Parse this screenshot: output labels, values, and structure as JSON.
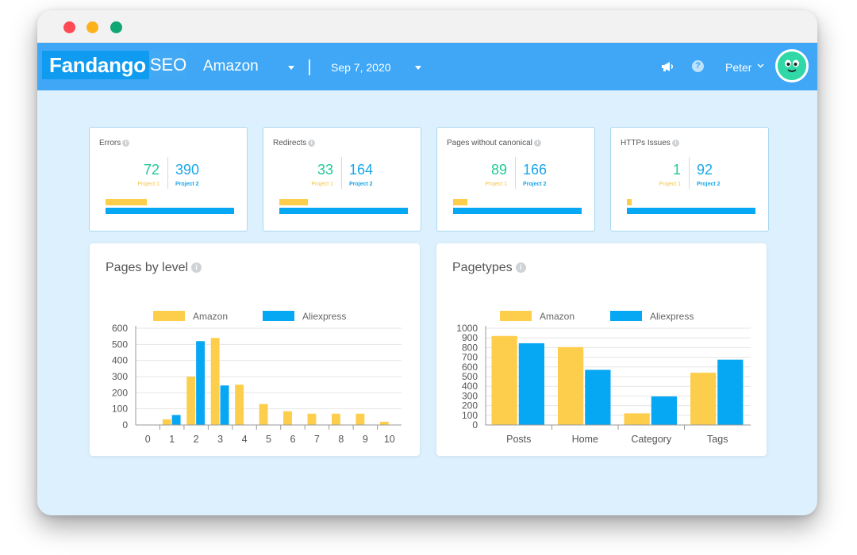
{
  "header": {
    "logo_main": "Fandango",
    "logo_suffix": "SEO",
    "project": "Amazon",
    "date": "Sep 7, 2020",
    "user": "Peter"
  },
  "colors": {
    "project1": "#fdcd4c",
    "project2": "#06a7f3",
    "value1": "#20c997",
    "value2": "#1aa6ea",
    "topbar": "#3fa7f6"
  },
  "stats": [
    {
      "title": "Errors",
      "v1": "72",
      "v2": "390",
      "l1": "Project 1",
      "l2": "Project 2",
      "bar1": 0.32,
      "bar2": 1.0
    },
    {
      "title": "Redirects",
      "v1": "33",
      "v2": "164",
      "l1": "Project 1",
      "l2": "Project 2",
      "bar1": 0.22,
      "bar2": 1.0
    },
    {
      "title": "Pages without canonical",
      "v1": "89",
      "v2": "166",
      "l1": "Project 1",
      "l2": "Project 2",
      "bar1": 0.11,
      "bar2": 1.0
    },
    {
      "title": "HTTPs Issues",
      "v1": "1",
      "v2": "92",
      "l1": "Project 1",
      "l2": "Project 2",
      "bar1": 0.04,
      "bar2": 1.0
    }
  ],
  "chart_data": [
    {
      "type": "bar",
      "title": "Pages by level",
      "categories": [
        "0",
        "1",
        "2",
        "3",
        "4",
        "5",
        "6",
        "7",
        "8",
        "9",
        "10"
      ],
      "series": [
        {
          "name": "Amazon",
          "color": "#fdcd4c",
          "values": [
            0,
            35,
            300,
            540,
            250,
            130,
            85,
            70,
            70,
            70,
            20
          ]
        },
        {
          "name": "Aliexpress",
          "color": "#06a7f3",
          "values": [
            0,
            62,
            520,
            245,
            0,
            0,
            0,
            0,
            0,
            0,
            0
          ]
        }
      ],
      "yticks": [
        "0",
        "100",
        "200",
        "300",
        "400",
        "500",
        "600"
      ],
      "ylim": [
        0,
        600
      ],
      "grid": true,
      "legend": "top"
    },
    {
      "type": "bar",
      "title": "Pagetypes",
      "categories": [
        "Posts",
        "Home",
        "Category",
        "Tags"
      ],
      "series": [
        {
          "name": "Amazon",
          "color": "#fdcd4c",
          "values": [
            920,
            805,
            120,
            540
          ]
        },
        {
          "name": "Aliexpress",
          "color": "#06a7f3",
          "values": [
            845,
            570,
            295,
            675
          ]
        }
      ],
      "yticks": [
        "0",
        "100",
        "200",
        "300",
        "400",
        "500",
        "600",
        "700",
        "800",
        "900",
        "1000"
      ],
      "ylim": [
        0,
        1000
      ],
      "grid": true,
      "legend": "top"
    }
  ]
}
